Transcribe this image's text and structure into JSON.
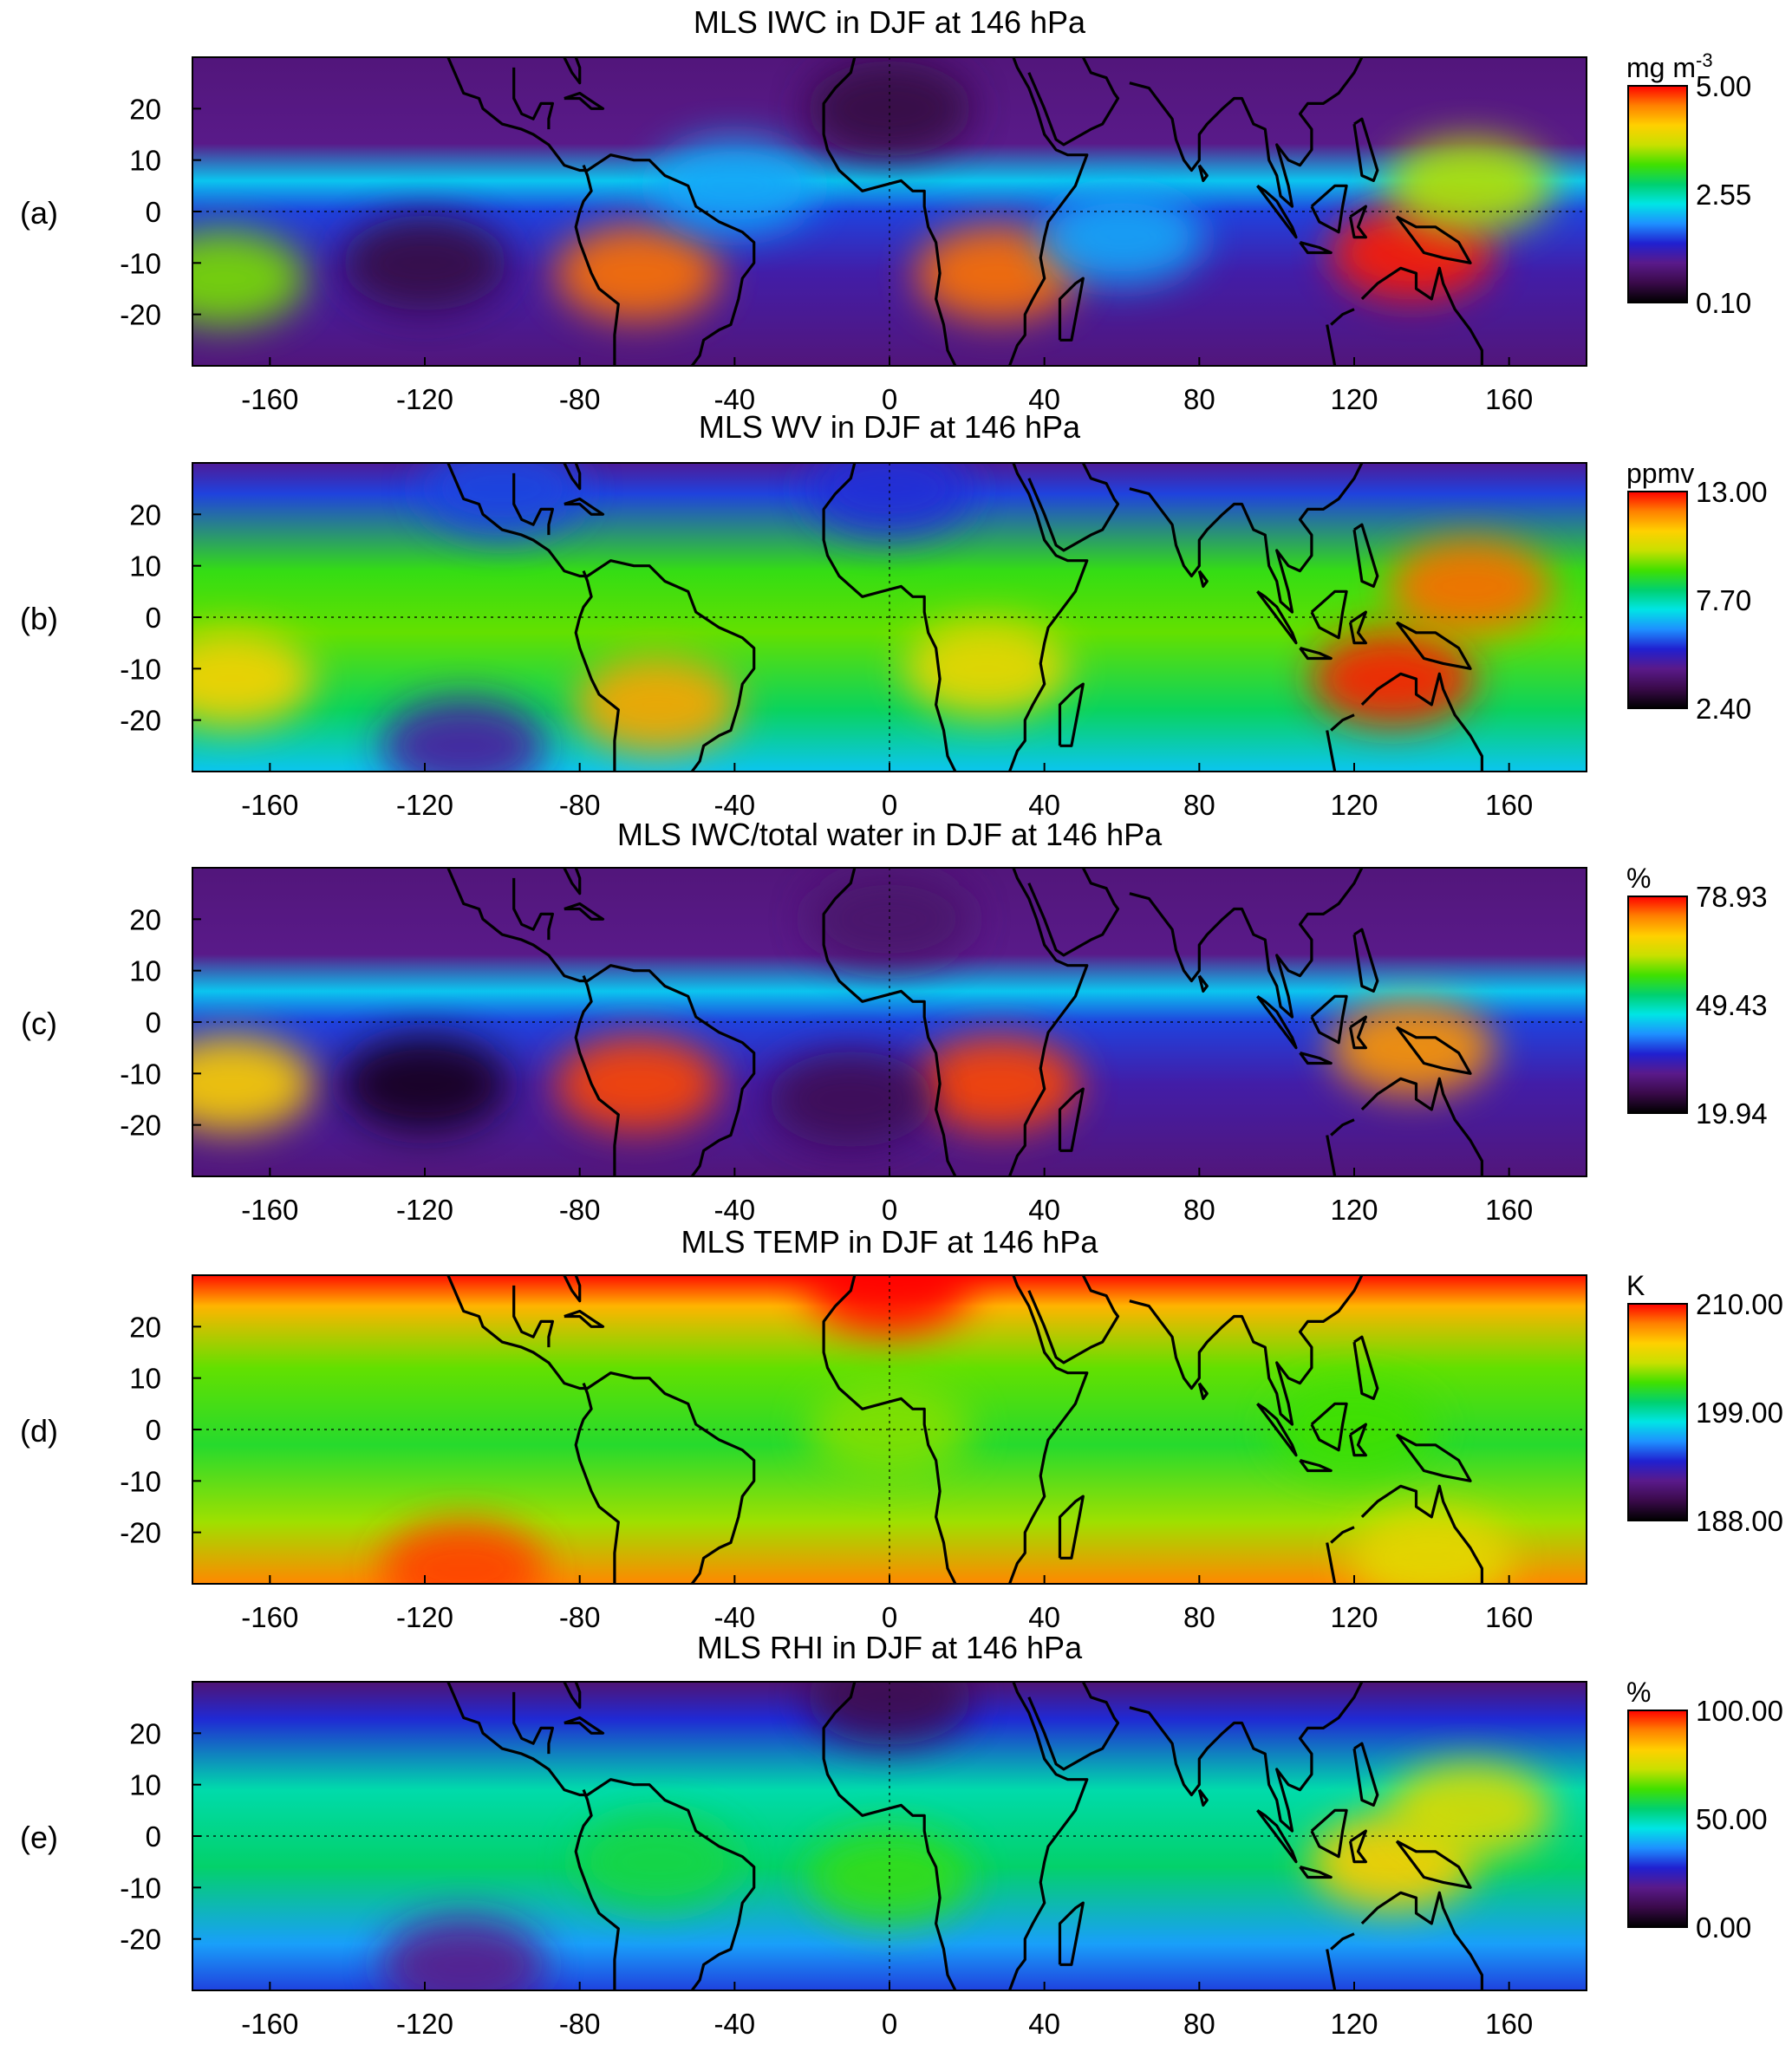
{
  "figure": {
    "x_axis": {
      "range": [
        -180,
        180
      ],
      "ticks": [
        -160,
        -120,
        -80,
        -40,
        0,
        40,
        80,
        120,
        160
      ],
      "tick_labels": [
        "-160",
        "-120",
        "-80",
        "-40",
        "0",
        "40",
        "80",
        "120",
        "160"
      ]
    },
    "y_axis": {
      "range": [
        -30,
        30
      ],
      "ticks": [
        20,
        10,
        0,
        -10,
        -20
      ],
      "tick_labels": [
        "20",
        "10",
        "0",
        "-10",
        "-20"
      ]
    },
    "colorscale": [
      "#000000",
      "#3a0a4a",
      "#5a1a8a",
      "#2020d0",
      "#1e90ff",
      "#00e5e5",
      "#00d070",
      "#40e000",
      "#c8e000",
      "#ffd000",
      "#ff8000",
      "#ff0000"
    ],
    "landmass_color": "#000000"
  },
  "panels": [
    {
      "label": "(a)",
      "title": "MLS IWC in DJF at 146 hPa",
      "unit": "mg m",
      "unit_sup": "-3",
      "cb_labels": [
        "5.00",
        "2.55",
        "0.10"
      ]
    },
    {
      "label": "(b)",
      "title": "MLS WV in DJF at 146 hPa",
      "unit": "ppmv",
      "unit_sup": "",
      "cb_labels": [
        "13.00",
        "7.70",
        "2.40"
      ]
    },
    {
      "label": "(c)",
      "title": "MLS IWC/total water in DJF at 146 hPa",
      "unit": "%",
      "unit_sup": "",
      "cb_labels": [
        "78.93",
        "49.43",
        "19.94"
      ]
    },
    {
      "label": "(d)",
      "title": "MLS TEMP in DJF at 146 hPa",
      "unit": "K",
      "unit_sup": "",
      "cb_labels": [
        "210.00",
        "199.00",
        "188.00"
      ]
    },
    {
      "label": "(e)",
      "title": "MLS RHI in DJF at 146 hPa",
      "unit": "%",
      "unit_sup": "",
      "cb_labels": [
        "100.00",
        "50.00",
        "0.00"
      ]
    }
  ],
  "chart_data": [
    {
      "type": "heatmap",
      "title": "MLS IWC in DJF at 146 hPa",
      "x_range": [
        -180,
        180
      ],
      "y_range": [
        -30,
        30
      ],
      "colorbar_unit": "mg m-3",
      "colorbar_range": [
        0.1,
        5.0
      ],
      "colorbar_ticks": [
        5.0,
        2.55,
        0.1
      ],
      "features": [
        {
          "lon": -65,
          "lat": -12,
          "value": 4.6
        },
        {
          "lon": 28,
          "lat": -12,
          "value": 4.6
        },
        {
          "lon": 135,
          "lat": -8,
          "value": 4.9
        },
        {
          "lon": 150,
          "lat": 5,
          "value": 3.6
        },
        {
          "lon": -172,
          "lat": -13,
          "value": 3.4
        },
        {
          "lon": -40,
          "lat": 5,
          "value": 2.0
        },
        {
          "lon": 60,
          "lat": -5,
          "value": 2.0
        },
        {
          "lon": -120,
          "lat": -10,
          "value": 0.5
        },
        {
          "lon": 0,
          "lat": 20,
          "value": 0.5
        }
      ]
    },
    {
      "type": "heatmap",
      "title": "MLS WV in DJF at 146 hPa",
      "x_range": [
        -180,
        180
      ],
      "y_range": [
        -30,
        30
      ],
      "colorbar_unit": "ppmv",
      "colorbar_range": [
        2.4,
        13.0
      ],
      "colorbar_ticks": [
        13.0,
        7.7,
        2.4
      ],
      "features": [
        {
          "lon": 130,
          "lat": -12,
          "value": 12.8
        },
        {
          "lon": 150,
          "lat": 6,
          "value": 12.2
        },
        {
          "lon": -60,
          "lat": -17,
          "value": 11.6
        },
        {
          "lon": 25,
          "lat": -10,
          "value": 10.8
        },
        {
          "lon": -170,
          "lat": -12,
          "value": 11.0
        },
        {
          "lon": -110,
          "lat": -25,
          "value": 4.6
        },
        {
          "lon": 0,
          "lat": 25,
          "value": 5.4
        },
        {
          "lon": -100,
          "lat": 25,
          "value": 5.6
        }
      ]
    },
    {
      "type": "heatmap",
      "title": "MLS IWC/total water in DJF at 146 hPa",
      "x_range": [
        -180,
        180
      ],
      "y_range": [
        -30,
        30
      ],
      "colorbar_unit": "%",
      "colorbar_range": [
        19.94,
        78.93
      ],
      "colorbar_ticks": [
        78.93,
        49.43,
        19.94
      ],
      "features": [
        {
          "lon": -65,
          "lat": -12,
          "value": 76
        },
        {
          "lon": 28,
          "lat": -12,
          "value": 76
        },
        {
          "lon": 135,
          "lat": -5,
          "value": 72
        },
        {
          "lon": -170,
          "lat": -12,
          "value": 68
        },
        {
          "lon": -120,
          "lat": -12,
          "value": 22
        },
        {
          "lon": -10,
          "lat": -15,
          "value": 26
        },
        {
          "lon": 0,
          "lat": 20,
          "value": 28
        }
      ]
    },
    {
      "type": "heatmap",
      "title": "MLS TEMP in DJF at 146 hPa",
      "x_range": [
        -180,
        180
      ],
      "y_range": [
        -30,
        30
      ],
      "colorbar_unit": "K",
      "colorbar_range": [
        188.0,
        210.0
      ],
      "colorbar_ticks": [
        210.0,
        199.0,
        188.0
      ],
      "features": [
        {
          "lon": -110,
          "lat": -27,
          "value": 209
        },
        {
          "lon": 0,
          "lat": 28,
          "value": 210
        },
        {
          "lon": 0,
          "lat": 0,
          "value": 203
        },
        {
          "lon": 120,
          "lat": 0,
          "value": 202
        },
        {
          "lon": 140,
          "lat": -25,
          "value": 205
        }
      ]
    },
    {
      "type": "heatmap",
      "title": "MLS RHI in DJF at 146 hPa",
      "x_range": [
        -180,
        180
      ],
      "y_range": [
        -30,
        30
      ],
      "colorbar_unit": "%",
      "colorbar_range": [
        0.0,
        100.0
      ],
      "colorbar_ticks": [
        100.0,
        50.0,
        0.0
      ],
      "features": [
        {
          "lon": 130,
          "lat": -5,
          "value": 82
        },
        {
          "lon": 150,
          "lat": 5,
          "value": 76
        },
        {
          "lon": 0,
          "lat": -8,
          "value": 62
        },
        {
          "lon": -60,
          "lat": -5,
          "value": 58
        },
        {
          "lon": -110,
          "lat": -25,
          "value": 18
        },
        {
          "lon": 0,
          "lat": 27,
          "value": 10
        }
      ]
    }
  ]
}
